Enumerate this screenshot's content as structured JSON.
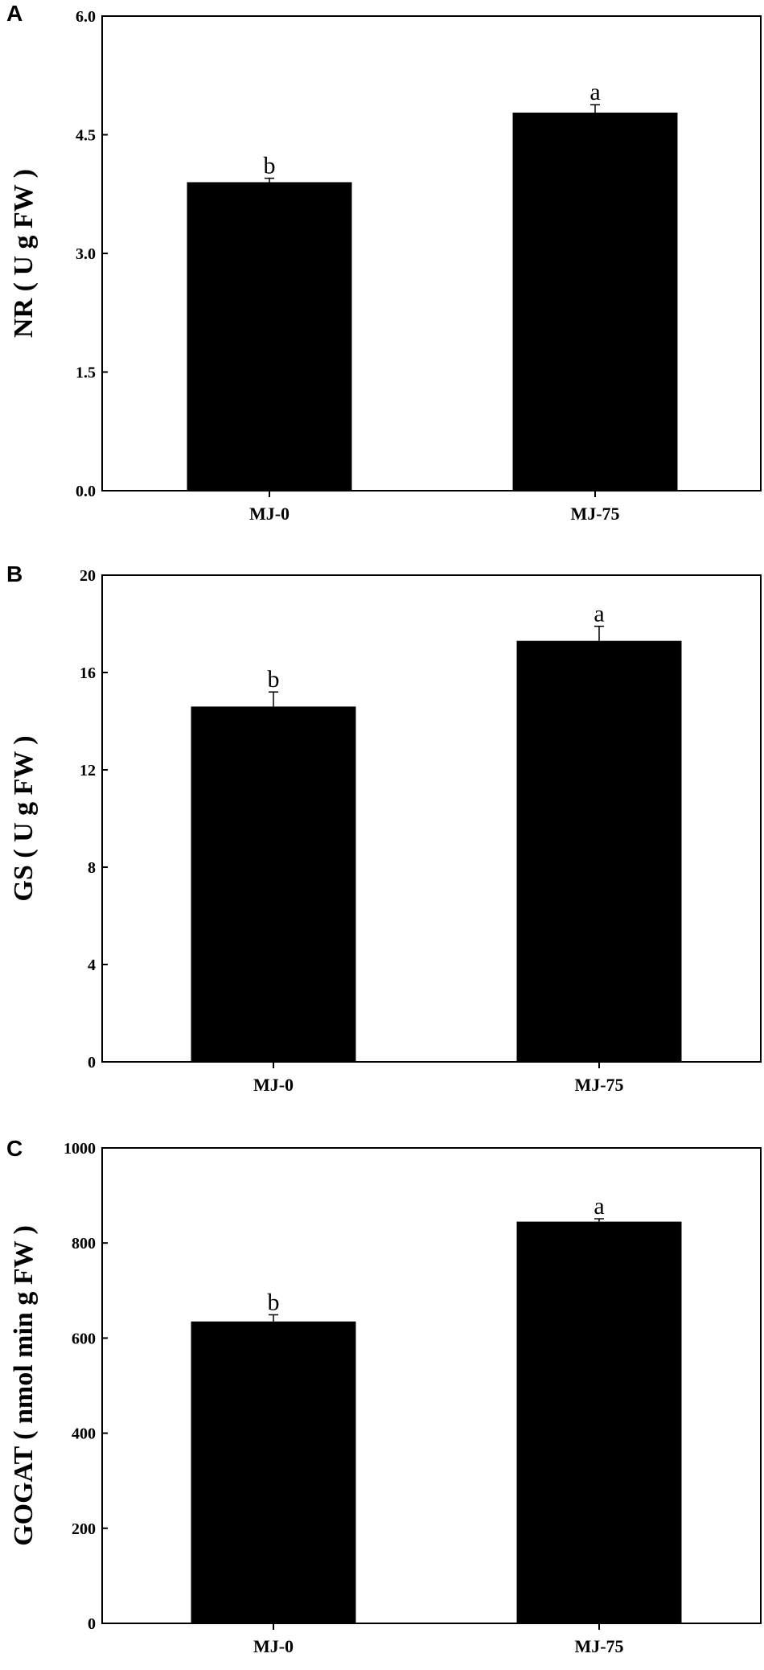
{
  "chart_data": [
    {
      "panel": "A",
      "type": "bar",
      "categories": [
        "MJ-0",
        "MJ-75"
      ],
      "values": [
        3.9,
        4.78
      ],
      "errors": [
        0.05,
        0.1
      ],
      "significance": [
        "b",
        "a"
      ],
      "ylabel": "NR ( U g FW )",
      "ylim": [
        0,
        6
      ],
      "yticks": [
        "0.0",
        "1.5",
        "3.0",
        "4.5",
        "6.0"
      ],
      "bar_color": "#000000"
    },
    {
      "panel": "B",
      "type": "bar",
      "categories": [
        "MJ-0",
        "MJ-75"
      ],
      "values": [
        14.6,
        17.3
      ],
      "errors": [
        0.6,
        0.6
      ],
      "significance": [
        "b",
        "a"
      ],
      "ylabel": "GS ( U g FW )",
      "ylim": [
        0,
        20
      ],
      "yticks": [
        "0",
        "4",
        "8",
        "12",
        "16",
        "20"
      ],
      "bar_color": "#000000"
    },
    {
      "panel": "C",
      "type": "bar",
      "categories": [
        "MJ-0",
        "MJ-75"
      ],
      "values": [
        635,
        845
      ],
      "errors": [
        14,
        6
      ],
      "significance": [
        "b",
        "a"
      ],
      "ylabel": "GOGAT ( nmol min g FW )",
      "ylim": [
        0,
        1000
      ],
      "yticks": [
        "0",
        "200",
        "400",
        "600",
        "800",
        "1000"
      ],
      "bar_color": "#000000"
    }
  ]
}
